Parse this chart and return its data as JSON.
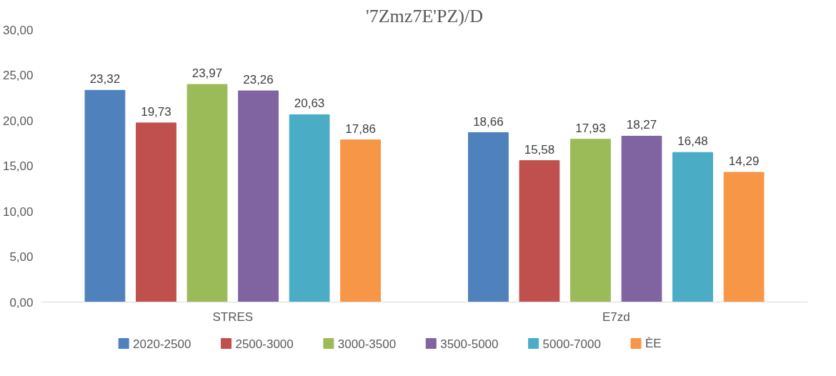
{
  "chart_data": {
    "type": "bar",
    "title": "'7Zmz7E'PZ)/D",
    "categories": [
      "STRES",
      "E7zd"
    ],
    "series": [
      {
        "name": "2020-2500",
        "color": "#4f81bd",
        "values": [
          23.32,
          18.66
        ],
        "value_labels": [
          "23,32",
          "18,66"
        ]
      },
      {
        "name": "2500-3000",
        "color": "#c0504d",
        "values": [
          19.73,
          15.58
        ],
        "value_labels": [
          "19,73",
          "15,58"
        ]
      },
      {
        "name": "3000-3500",
        "color": "#9bbb59",
        "values": [
          23.97,
          17.93
        ],
        "value_labels": [
          "23,97",
          "17,93"
        ]
      },
      {
        "name": "3500-5000",
        "color": "#8064a2",
        "values": [
          23.26,
          18.27
        ],
        "value_labels": [
          "23,26",
          "18,27"
        ]
      },
      {
        "name": "5000-7000",
        "color": "#4bacc6",
        "values": [
          20.63,
          16.48
        ],
        "value_labels": [
          "20,63",
          "16,48"
        ]
      },
      {
        "name": "ÈE",
        "color": "#f79646",
        "values": [
          17.86,
          14.29
        ],
        "value_labels": [
          "17,86",
          "14,29"
        ]
      }
    ],
    "ylim": [
      0,
      30
    ],
    "yticks": [
      {
        "value": 0,
        "label": "0,00"
      },
      {
        "value": 5,
        "label": "5,00"
      },
      {
        "value": 10,
        "label": "10,00"
      },
      {
        "value": 15,
        "label": "15,00"
      },
      {
        "value": 20,
        "label": "20,00"
      },
      {
        "value": 25,
        "label": "25,00"
      },
      {
        "value": 30,
        "label": "30,00"
      }
    ],
    "legend": "bottom"
  }
}
